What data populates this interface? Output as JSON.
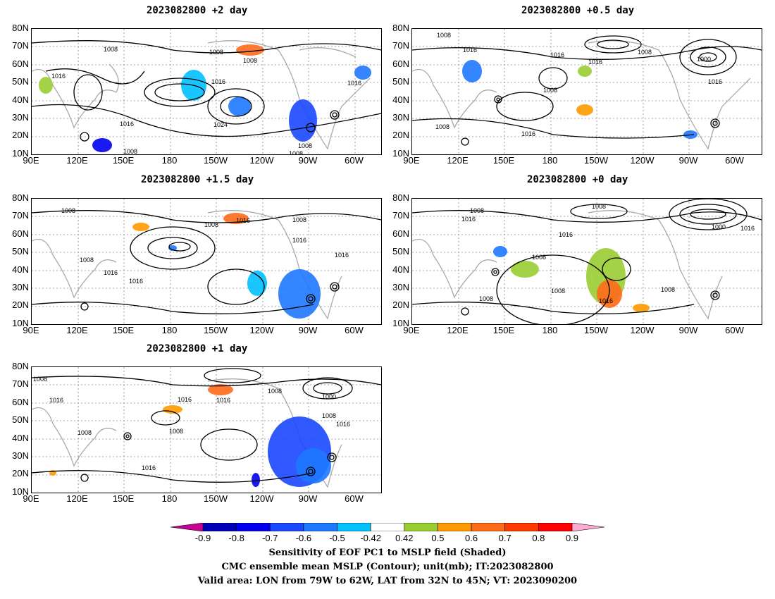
{
  "panels": [
    {
      "title": "2023082800 +2 day"
    },
    {
      "title": "2023082800 +0.5 day"
    },
    {
      "title": "2023082800 +1.5 day"
    },
    {
      "title": "2023082800 +0 day"
    },
    {
      "title": "2023082800 +1 day"
    }
  ],
  "lat_labels": [
    "80N",
    "70N",
    "60N",
    "50N",
    "40N",
    "30N",
    "20N",
    "10N"
  ],
  "lon_labels": [
    "90E",
    "120E",
    "150E",
    "180",
    "150W",
    "120W",
    "90W",
    "60W"
  ],
  "isobar_labels": {
    "p0": [
      "1008",
      "1008",
      "1016",
      "1016",
      "1016",
      "1024",
      "1016",
      "1008",
      "1008",
      "1008",
      "1008"
    ],
    "p1": [
      "1008",
      "1016",
      "1016",
      "1008",
      "1000",
      "1016",
      "1016",
      "1008",
      "1016",
      "1008"
    ],
    "p2": [
      "1008",
      "1008",
      "1016",
      "1008",
      "1016",
      "1016",
      "1016",
      "1016",
      "1008"
    ],
    "p3": [
      "1008",
      "1008",
      "1016",
      "1008",
      "1000",
      "1016",
      "1016",
      "1008",
      "1016",
      "1008",
      "1008"
    ],
    "p4": [
      "1008",
      "1016",
      "1008",
      "1016",
      "1016",
      "1008",
      "1000",
      "1008",
      "1016",
      "1008",
      "1016"
    ]
  },
  "colorbar": {
    "labels": [
      "-0.9",
      "-0.8",
      "-0.7",
      "-0.6",
      "-0.5",
      "-0.42",
      "0.42",
      "0.5",
      "0.6",
      "0.7",
      "0.8",
      "0.9"
    ],
    "colors": [
      "#0000bb",
      "#0000ee",
      "#1a48ff",
      "#1e78ff",
      "#00c0ff",
      "#ffffff",
      "#9acd32",
      "#ff9a00",
      "#ff6a1a",
      "#ff3a00",
      "#ff0000"
    ],
    "low_color": "#c80096",
    "high_color": "#ffaad2"
  },
  "caption": [
    "Sensitivity of EOF PC1 to MSLP field (Shaded)",
    "CMC ensemble mean MSLP (Contour); unit(mb); IT:2023082800",
    "Valid area: LON from 79W to 62W, LAT from 32N to 45N; VT: 2023090200"
  ]
}
